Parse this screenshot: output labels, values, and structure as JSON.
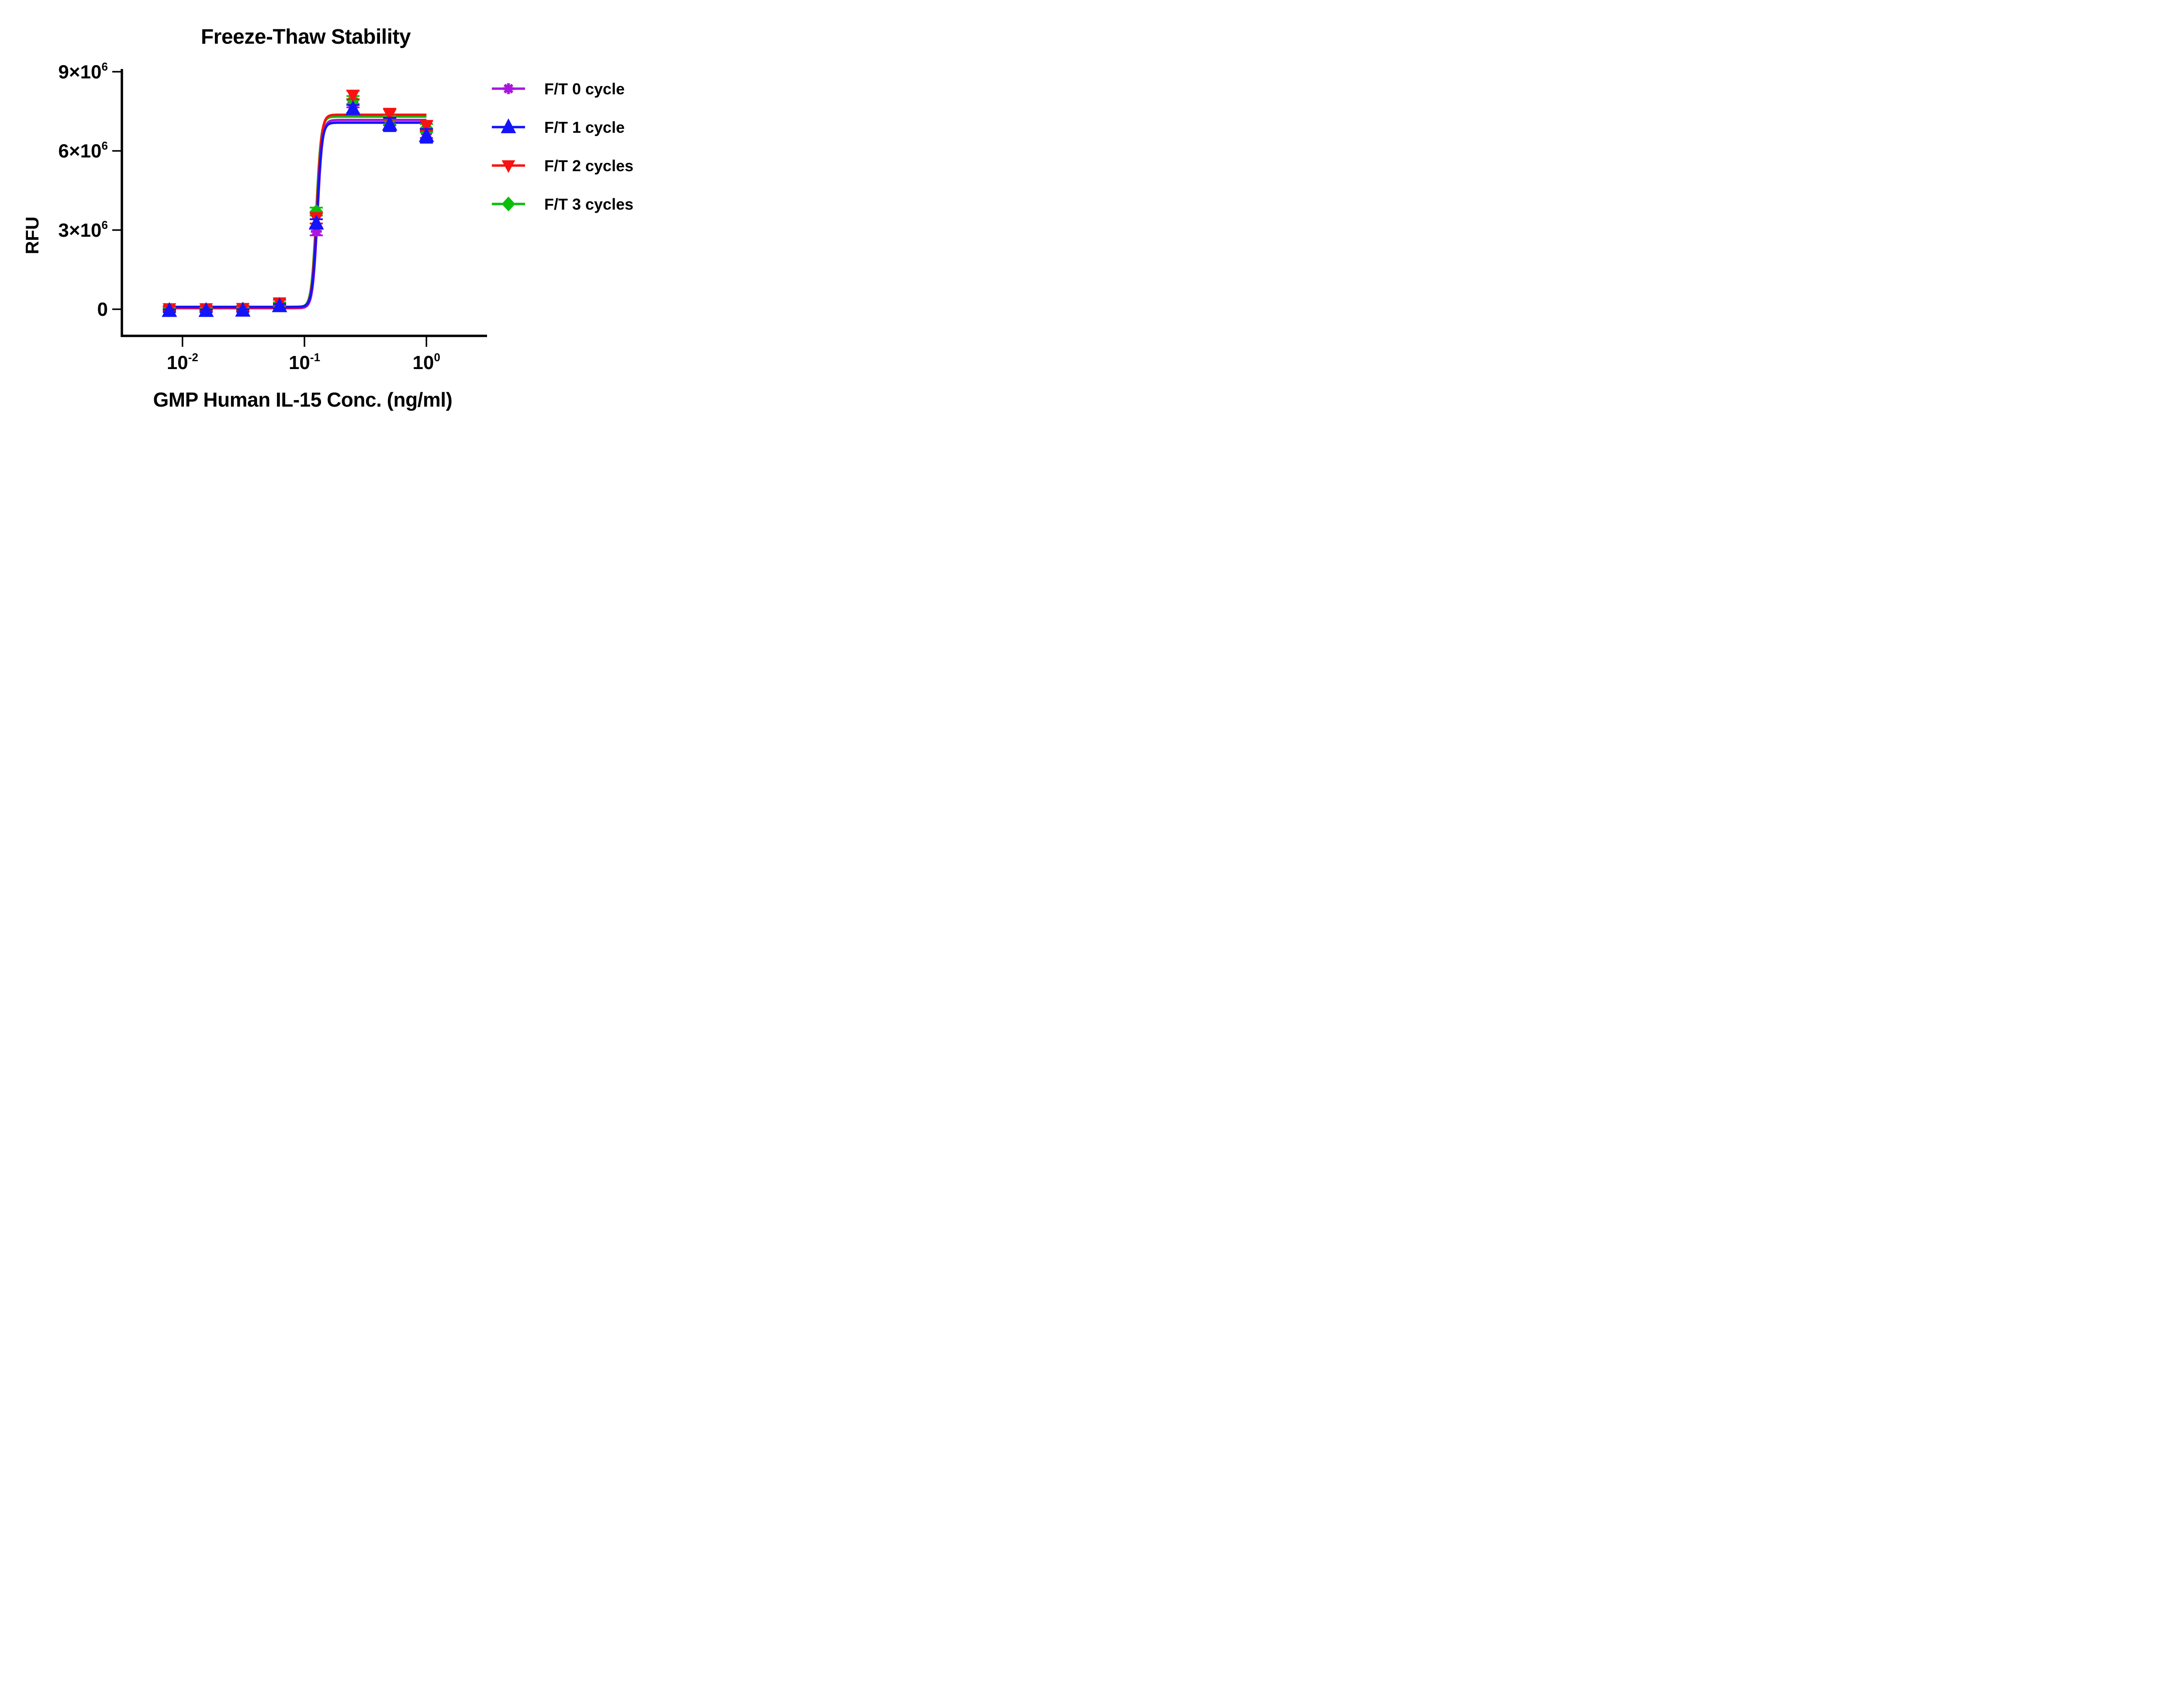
{
  "title": "Freeze-Thaw Stability",
  "background_color": "#FFFFFF",
  "axis_color": "#000000",
  "axes": {
    "x": {
      "label": "GMP Human IL-15 Conc. (ng/ml)",
      "scale": "log10",
      "range_log10": [
        -2.5,
        0.5
      ],
      "ticks": [
        {
          "value": 0.01,
          "base": "10",
          "exp": "-2"
        },
        {
          "value": 0.1,
          "base": "10",
          "exp": "-1"
        },
        {
          "value": 1,
          "base": "10",
          "exp": "0"
        }
      ]
    },
    "y": {
      "label": "RFU",
      "range": [
        -1000000,
        9100000
      ],
      "ticks": [
        {
          "value": 0,
          "base": "0",
          "exp": ""
        },
        {
          "value": 3000000,
          "base": "3×10",
          "exp": "6"
        },
        {
          "value": 6000000,
          "base": "6×10",
          "exp": "6"
        },
        {
          "value": 9000000,
          "base": "9×10",
          "exp": "6"
        }
      ]
    }
  },
  "chart_data": {
    "type": "scatter",
    "title": "Freeze-Thaw Stability",
    "xlabel": "GMP Human IL-15 Conc. (ng/ml)",
    "ylabel": "RFU",
    "grid": false,
    "legend_position": "right",
    "x": [
      0.0078125,
      0.015625,
      0.03125,
      0.0625,
      0.125,
      0.25,
      0.5,
      1
    ],
    "series": [
      {
        "name": "F/T 0 cycle",
        "color": "#A816DF",
        "marker": "asterisk",
        "values": [
          0,
          0,
          10000,
          150000,
          2950000,
          7800000,
          7130000,
          6650000
        ],
        "errors": [
          60000,
          60000,
          60000,
          80000,
          150000,
          150000,
          160000,
          160000
        ],
        "fit": {
          "model": "4PL",
          "bottom": 40000,
          "top": 7170000,
          "ec50": 0.128,
          "hill": 22
        }
      },
      {
        "name": "F/T 1 cycle",
        "color": "#1414FA",
        "marker": "triangle-up",
        "values": [
          -60000,
          -60000,
          -50000,
          120000,
          3250000,
          7590000,
          7000000,
          6570000
        ],
        "errors": [
          50000,
          50000,
          50000,
          80000,
          160000,
          150000,
          250000,
          260000
        ],
        "fit": {
          "model": "4PL",
          "bottom": 90000,
          "top": 7070000,
          "ec50": 0.127,
          "hill": 22
        }
      },
      {
        "name": "F/T 2 cycles",
        "color": "#F81212",
        "marker": "triangle-down",
        "values": [
          30000,
          30000,
          40000,
          250000,
          3450000,
          8120000,
          7390000,
          6950000
        ],
        "errors": [
          90000,
          90000,
          90000,
          110000,
          200000,
          160000,
          210000,
          190000
        ],
        "fit": {
          "model": "4PL",
          "bottom": 65000,
          "top": 7370000,
          "ec50": 0.126,
          "hill": 22
        }
      },
      {
        "name": "F/T 3 cycles",
        "color": "#0CBE0C",
        "marker": "diamond",
        "values": [
          -20000,
          -20000,
          0,
          180000,
          3700000,
          7930000,
          7170000,
          6860000
        ],
        "errors": [
          60000,
          60000,
          60000,
          80000,
          150000,
          150000,
          160000,
          160000
        ],
        "fit": {
          "model": "4PL",
          "bottom": 80000,
          "top": 7300000,
          "ec50": 0.125,
          "hill": 22
        }
      }
    ],
    "draw_order": [
      0,
      3,
      2,
      1
    ],
    "curve_x_range": [
      0.0078125,
      1
    ]
  }
}
